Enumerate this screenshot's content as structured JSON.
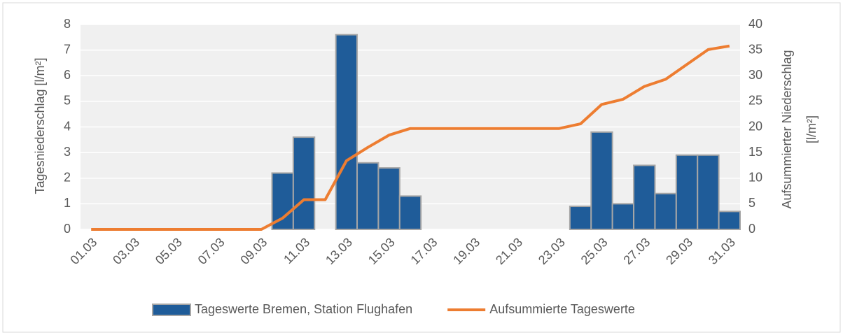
{
  "chart_data": {
    "type": "bar_line",
    "ylabel": "Tagesniederschlag [l/m²]",
    "y2label": [
      "Aufsummierter Niederschlag",
      "[l/m²]"
    ],
    "categories": [
      "01.03",
      null,
      "03.03",
      null,
      "05.03",
      null,
      "07.03",
      null,
      "09.03",
      null,
      "11.03",
      null,
      "13.03",
      null,
      "15.03",
      null,
      "17.03",
      null,
      "19.03",
      null,
      "21.03",
      null,
      "23.03",
      null,
      "25.03",
      null,
      "27.03",
      null,
      "29.03",
      null,
      "31.03"
    ],
    "series": [
      {
        "name": "Tageswerte Bremen, Station Flughafen",
        "type": "bar",
        "color": "#1f5c99",
        "values": [
          0,
          0,
          0,
          0,
          0,
          0,
          0,
          0,
          0,
          2.2,
          3.6,
          0,
          7.6,
          2.6,
          2.4,
          1.3,
          0,
          0,
          0,
          0,
          0,
          0,
          0,
          0.9,
          3.8,
          1.0,
          2.5,
          1.4,
          2.9,
          2.9,
          0.7
        ]
      },
      {
        "name": "Aufsummierte Tageswerte",
        "type": "line",
        "axis": "y2",
        "color": "#ed7d31",
        "values": [
          0,
          0,
          0,
          0,
          0,
          0,
          0,
          0,
          0,
          2.2,
          5.8,
          5.8,
          13.4,
          16.0,
          18.4,
          19.7,
          19.7,
          19.7,
          19.7,
          19.7,
          19.7,
          19.7,
          19.7,
          20.6,
          24.4,
          25.4,
          27.9,
          29.3,
          32.2,
          35.1,
          35.8
        ]
      }
    ],
    "ylim": [
      0,
      8
    ],
    "yticks": [
      0,
      1,
      2,
      3,
      4,
      5,
      6,
      7,
      8
    ],
    "y2lim": [
      0,
      40
    ],
    "y2ticks": [
      0,
      5,
      10,
      15,
      20,
      25,
      30,
      35,
      40
    ],
    "grid": true,
    "legend": "bottom"
  }
}
